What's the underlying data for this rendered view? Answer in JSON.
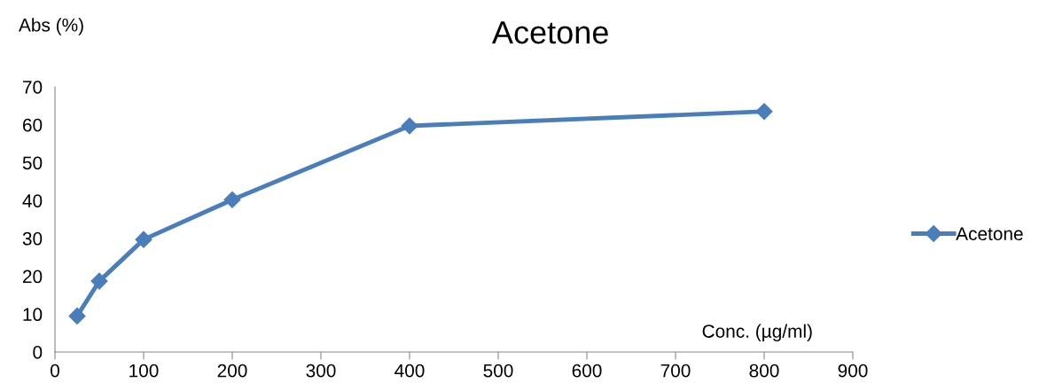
{
  "chart_data": {
    "type": "line",
    "title": "Acetone",
    "xlabel": "Conc. (µg/ml)",
    "ylabel": "Abs (%)",
    "x": [
      25,
      50,
      100,
      200,
      400,
      800
    ],
    "series": [
      {
        "name": "Acetone",
        "color": "#4a7ebb",
        "values": [
          9.5,
          18.7,
          29.7,
          40.2,
          59.7,
          63.5
        ]
      }
    ],
    "xlim": [
      0,
      900
    ],
    "xticks": [
      0,
      100,
      200,
      300,
      400,
      500,
      600,
      700,
      800,
      900
    ],
    "ylim": [
      0,
      70
    ],
    "yticks": [
      0,
      10,
      20,
      30,
      40,
      50,
      60,
      70
    ],
    "grid": false,
    "legend": "right",
    "marker": "diamond",
    "line_style": "solid"
  }
}
